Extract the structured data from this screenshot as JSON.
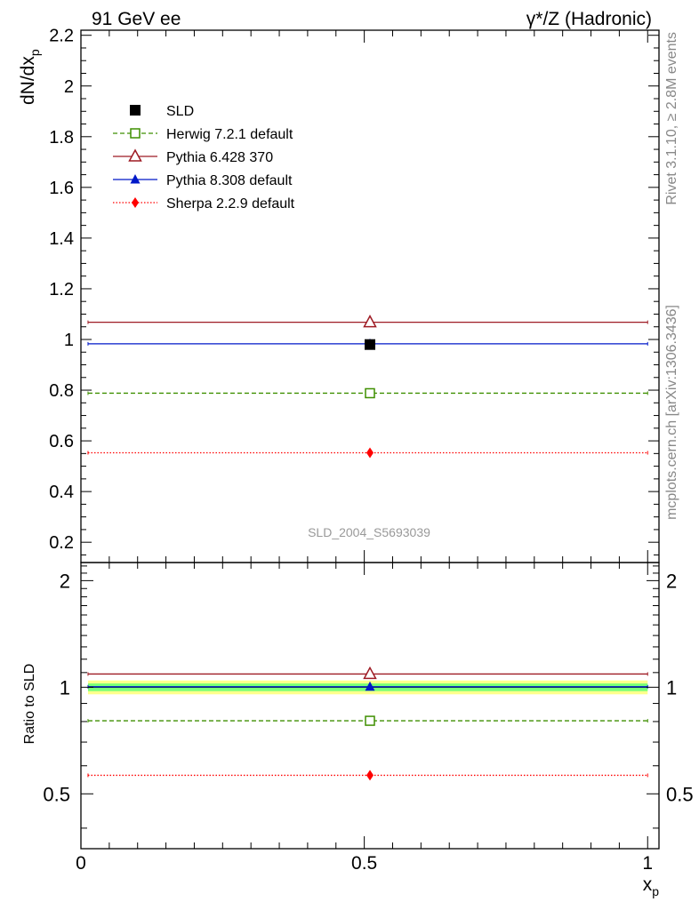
{
  "header": {
    "left_label": "91 GeV ee",
    "right_label": "γ*/Z (Hadronic)"
  },
  "side_labels": {
    "rivet": "Rivet 3.1.10, ≥ 2.8M events",
    "mcplots": "mcplots.cern.ch [arXiv:1306.3436]"
  },
  "watermark": "SLD_2004_S5693039",
  "colors": {
    "data": "#000000",
    "herwig": "#3f8f00",
    "pythia6": "#9e1b24",
    "pythia8": "#0018c8",
    "sherpa": "#ff0000",
    "band_inner": "#79ff79",
    "band_outer": "#ffff8c"
  },
  "chart_data": [
    {
      "type": "line",
      "panel": "main",
      "ylabel": "dN/dx",
      "ylabel_sub": "p",
      "xlim": [
        0,
        1.02
      ],
      "ylim": [
        0.12,
        2.22
      ],
      "yticks": [
        0.2,
        0.4,
        0.6,
        0.8,
        1,
        1.2,
        1.4,
        1.6,
        1.8,
        2,
        2.2
      ],
      "ytick_labels": [
        "0.2",
        "0.4",
        "0.6",
        "0.8",
        "1",
        "1.2",
        "1.4",
        "1.6",
        "1.8",
        "2",
        "2.2"
      ],
      "x_range": [
        0.0125,
        1.0
      ],
      "x_center": 0.51,
      "legend_position": "top-left",
      "series": [
        {
          "key": "data",
          "name": "SLD",
          "value": 0.98,
          "marker": "filled-square",
          "style": "none"
        },
        {
          "key": "herwig",
          "name": "Herwig 7.2.1 default",
          "value": 0.788,
          "marker": "open-square",
          "style": "dashed"
        },
        {
          "key": "pythia6",
          "name": "Pythia 6.428 370",
          "value": 1.068,
          "marker": "open-triangle",
          "style": "solid"
        },
        {
          "key": "pythia8",
          "name": "Pythia 8.308 default",
          "value": 0.983,
          "marker": "filled-triangle",
          "style": "solid"
        },
        {
          "key": "sherpa",
          "name": "Sherpa 2.2.9 default",
          "value": 0.553,
          "marker": "filled-diamond",
          "style": "dotted"
        }
      ]
    },
    {
      "type": "line",
      "panel": "ratio",
      "ylabel": "Ratio to SLD",
      "xlabel": "x",
      "xlabel_sub": "p",
      "xlim": [
        0,
        1.02
      ],
      "ylim": [
        0.35,
        2.25
      ],
      "yticks": [
        0.5,
        1,
        2
      ],
      "ytick_labels": [
        "0.5",
        "1",
        "2"
      ],
      "xticks": [
        0,
        0.5,
        1
      ],
      "xtick_labels": [
        "0",
        "0.5",
        "1"
      ],
      "band_inner": [
        0.975,
        1.025
      ],
      "band_outer": [
        0.955,
        1.045
      ],
      "series": [
        {
          "key": "herwig",
          "value": 0.804,
          "marker": "open-square",
          "style": "dashed"
        },
        {
          "key": "pythia6",
          "value": 1.09,
          "marker": "open-triangle",
          "style": "solid"
        },
        {
          "key": "pythia8",
          "value": 1.003,
          "marker": "filled-triangle",
          "style": "solid"
        },
        {
          "key": "sherpa",
          "value": 0.564,
          "marker": "filled-diamond",
          "style": "dotted"
        }
      ]
    }
  ]
}
